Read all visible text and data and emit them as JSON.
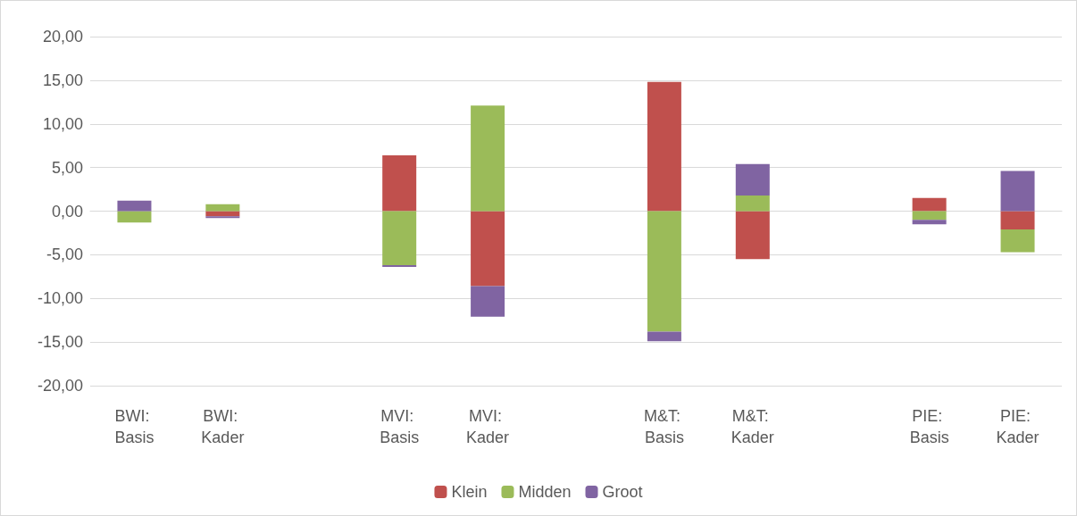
{
  "chart_data": {
    "type": "bar",
    "stacked": true,
    "categories": [
      "BWI: Basis",
      "BWI: Kader",
      null,
      "MVI: Basis",
      "MVI: Kader",
      null,
      "M&T: Basis",
      "M&T: Kader",
      null,
      "PIE: Basis",
      "PIE: Kader"
    ],
    "series": [
      {
        "name": "Klein",
        "color": "#c0504d",
        "values": [
          0,
          -0.6,
          null,
          6.4,
          -8.6,
          null,
          14.8,
          -5.5,
          null,
          1.5,
          -2.1
        ]
      },
      {
        "name": "Midden",
        "color": "#9bbb59",
        "values": [
          -1.3,
          0.8,
          null,
          -6.2,
          12.1,
          null,
          -13.8,
          1.8,
          null,
          -1.0,
          -2.6
        ]
      },
      {
        "name": "Groot",
        "color": "#8064a2",
        "values": [
          1.2,
          -0.2,
          null,
          -0.2,
          -3.5,
          null,
          -1.1,
          3.6,
          null,
          -0.5,
          4.6
        ]
      }
    ],
    "ylim": [
      -20,
      20
    ],
    "yticks": [
      {
        "value": -20,
        "label": "-20,00"
      },
      {
        "value": -15,
        "label": "-15,00"
      },
      {
        "value": -10,
        "label": "-10,00"
      },
      {
        "value": -5,
        "label": "-5,00"
      },
      {
        "value": 0,
        "label": "0,00"
      },
      {
        "value": 5,
        "label": "5,00"
      },
      {
        "value": 10,
        "label": "10,00"
      },
      {
        "value": 15,
        "label": "15,00"
      },
      {
        "value": 20,
        "label": "20,00"
      }
    ],
    "grid": "y",
    "legend": "bottom"
  }
}
